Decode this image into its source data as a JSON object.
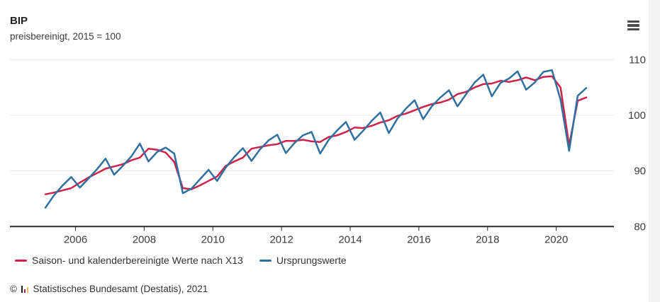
{
  "header": {
    "title": "BIP",
    "subtitle": "preisbereinigt, 2015 = 100"
  },
  "menu": {
    "icon": "hamburger-icon",
    "tooltip": "Chart context menu"
  },
  "footer": {
    "copyright_symbol": "©",
    "source": "Statistisches Bundesamt (Destatis), 2021",
    "logo_bar_colors": [
      "#1d1d1b",
      "#9c2b43",
      "#e3bd4d"
    ]
  },
  "colors": {
    "series_adjusted": "#cf2249",
    "series_original": "#30709f",
    "grid": "#e7e7e7",
    "axis": "#2b2b2b",
    "text": "#3c3c3c",
    "page_strip": "#f4f4f5"
  },
  "chart_data": {
    "type": "line",
    "title": "BIP",
    "subtitle": "preisbereinigt, 2015 = 100",
    "x_unit": "year-quarterly",
    "x_start": 2005.125,
    "x_step": 0.25,
    "xlim": [
      2004.09,
      2021.68
    ],
    "ylim": [
      80,
      110
    ],
    "xticks": [
      2006,
      2008,
      2010,
      2012,
      2014,
      2016,
      2018,
      2020
    ],
    "yticks": [
      80,
      90,
      100,
      110
    ],
    "grid": "horizontal-light",
    "legend_position": "bottom-left",
    "series": [
      {
        "name": "Saison- und kalenderbereinigte Werte nach X13",
        "color": "#cf2249",
        "values": [
          85.8,
          86.1,
          86.5,
          86.9,
          87.9,
          88.8,
          89.6,
          90.4,
          90.8,
          91.2,
          91.9,
          92.4,
          94.0,
          93.8,
          93.3,
          91.6,
          86.9,
          86.7,
          87.4,
          88.2,
          89.0,
          90.9,
          91.7,
          92.4,
          94.0,
          94.3,
          94.6,
          94.8,
          95.4,
          95.4,
          95.6,
          95.3,
          95.2,
          96.1,
          96.4,
          97.0,
          97.8,
          97.7,
          98.1,
          98.7,
          99.1,
          99.9,
          100.3,
          100.9,
          101.5,
          102.0,
          102.3,
          102.8,
          103.8,
          104.2,
          105.0,
          105.6,
          105.7,
          106.2,
          106.0,
          106.3,
          106.8,
          106.3,
          106.9,
          107.0,
          105.0,
          94.6,
          102.6,
          103.2
        ]
      },
      {
        "name": "Ursprungswerte",
        "color": "#30709f",
        "values": [
          83.4,
          85.6,
          87.4,
          88.9,
          87.0,
          88.6,
          90.3,
          92.2,
          89.3,
          90.9,
          92.6,
          94.9,
          91.7,
          93.4,
          94.2,
          93.1,
          86.0,
          86.8,
          88.5,
          90.2,
          88.2,
          90.6,
          92.5,
          94.1,
          91.8,
          93.9,
          95.5,
          96.5,
          93.2,
          95.0,
          96.4,
          97.0,
          93.1,
          95.6,
          97.3,
          98.8,
          95.6,
          97.2,
          99.0,
          100.5,
          96.8,
          99.4,
          101.2,
          102.7,
          99.3,
          101.6,
          103.2,
          104.5,
          101.6,
          103.8,
          105.9,
          107.3,
          103.4,
          105.8,
          106.6,
          107.9,
          104.6,
          105.9,
          107.8,
          108.1,
          102.8,
          93.6,
          103.5,
          104.9
        ]
      }
    ]
  }
}
